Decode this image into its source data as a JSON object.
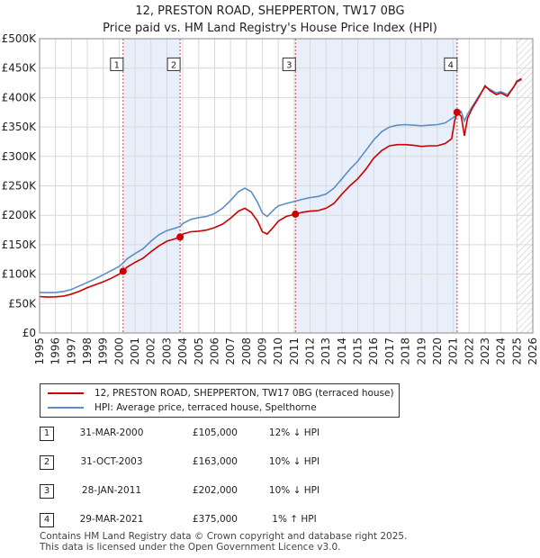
{
  "chart_data": {
    "type": "line",
    "title": "12, PRESTON ROAD, SHEPPERTON, TW17 0BG",
    "subtitle": "Price paid vs. HM Land Registry's House Price Index (HPI)",
    "xlim": [
      1995,
      2026
    ],
    "ylim": [
      0,
      500000
    ],
    "x_ticks": [
      "1995",
      "1996",
      "1997",
      "1998",
      "1999",
      "2000",
      "2001",
      "2002",
      "2003",
      "2004",
      "2005",
      "2006",
      "2007",
      "2008",
      "2009",
      "2010",
      "2011",
      "2012",
      "2013",
      "2014",
      "2015",
      "2016",
      "2017",
      "2018",
      "2019",
      "2020",
      "2021",
      "2022",
      "2023",
      "2024",
      "2025",
      "2026"
    ],
    "y_ticks": [
      {
        "value": 0,
        "label": "£0"
      },
      {
        "value": 50000,
        "label": "£50K"
      },
      {
        "value": 100000,
        "label": "£100K"
      },
      {
        "value": 150000,
        "label": "£150K"
      },
      {
        "value": 200000,
        "label": "£200K"
      },
      {
        "value": 250000,
        "label": "£250K"
      },
      {
        "value": 300000,
        "label": "£300K"
      },
      {
        "value": 350000,
        "label": "£350K"
      },
      {
        "value": 400000,
        "label": "£400K"
      },
      {
        "value": 450000,
        "label": "£450K"
      },
      {
        "value": 500000,
        "label": "£500K"
      }
    ],
    "grid": true,
    "shaded_periods": [
      [
        2000.25,
        2003.83
      ],
      [
        2011.08,
        2021.24
      ]
    ],
    "future_hatch_from": 2025.0,
    "series": [
      {
        "name": "12, PRESTON ROAD, SHEPPERTON, TW17 0BG (terraced house)",
        "color": "#cc0000",
        "points": [
          [
            1995.0,
            62000
          ],
          [
            1995.5,
            61000
          ],
          [
            1996.0,
            61500
          ],
          [
            1996.5,
            62500
          ],
          [
            1997.0,
            66000
          ],
          [
            1997.5,
            71000
          ],
          [
            1998.0,
            77000
          ],
          [
            1998.5,
            82000
          ],
          [
            1999.0,
            87000
          ],
          [
            1999.5,
            93000
          ],
          [
            2000.0,
            100000
          ],
          [
            2000.25,
            105000
          ],
          [
            2000.5,
            112000
          ],
          [
            2001.0,
            120000
          ],
          [
            2001.5,
            127000
          ],
          [
            2002.0,
            138000
          ],
          [
            2002.5,
            148000
          ],
          [
            2003.0,
            156000
          ],
          [
            2003.5,
            160000
          ],
          [
            2003.83,
            163000
          ],
          [
            2004.0,
            168000
          ],
          [
            2004.5,
            172000
          ],
          [
            2005.0,
            173000
          ],
          [
            2005.5,
            175000
          ],
          [
            2006.0,
            179000
          ],
          [
            2006.5,
            185000
          ],
          [
            2007.0,
            195000
          ],
          [
            2007.5,
            207000
          ],
          [
            2007.9,
            212000
          ],
          [
            2008.3,
            205000
          ],
          [
            2008.7,
            190000
          ],
          [
            2009.0,
            172000
          ],
          [
            2009.3,
            168000
          ],
          [
            2009.7,
            180000
          ],
          [
            2010.0,
            190000
          ],
          [
            2010.5,
            198000
          ],
          [
            2011.08,
            202000
          ],
          [
            2011.5,
            205000
          ],
          [
            2012.0,
            207000
          ],
          [
            2012.5,
            208000
          ],
          [
            2013.0,
            212000
          ],
          [
            2013.5,
            220000
          ],
          [
            2014.0,
            236000
          ],
          [
            2014.5,
            250000
          ],
          [
            2015.0,
            262000
          ],
          [
            2015.5,
            278000
          ],
          [
            2016.0,
            297000
          ],
          [
            2016.5,
            310000
          ],
          [
            2017.0,
            318000
          ],
          [
            2017.5,
            320000
          ],
          [
            2018.0,
            320000
          ],
          [
            2018.5,
            319000
          ],
          [
            2019.0,
            317000
          ],
          [
            2019.5,
            318000
          ],
          [
            2020.0,
            318000
          ],
          [
            2020.5,
            322000
          ],
          [
            2020.9,
            330000
          ],
          [
            2021.1,
            362000
          ],
          [
            2021.24,
            375000
          ],
          [
            2021.5,
            368000
          ],
          [
            2021.7,
            335000
          ],
          [
            2021.9,
            365000
          ],
          [
            2022.2,
            382000
          ],
          [
            2022.6,
            400000
          ],
          [
            2023.0,
            420000
          ],
          [
            2023.3,
            412000
          ],
          [
            2023.7,
            405000
          ],
          [
            2024.0,
            408000
          ],
          [
            2024.4,
            402000
          ],
          [
            2024.8,
            418000
          ],
          [
            2025.0,
            428000
          ],
          [
            2025.3,
            432000
          ]
        ]
      },
      {
        "name": "HPI: Average price, terraced house, Spelthorne",
        "color": "#5b8ec6",
        "points": [
          [
            1995.0,
            69000
          ],
          [
            1995.5,
            68500
          ],
          [
            1996.0,
            69000
          ],
          [
            1996.5,
            70500
          ],
          [
            1997.0,
            74000
          ],
          [
            1997.5,
            80000
          ],
          [
            1998.0,
            86000
          ],
          [
            1998.5,
            92000
          ],
          [
            1999.0,
            99000
          ],
          [
            1999.5,
            106000
          ],
          [
            2000.0,
            113000
          ],
          [
            2000.25,
            119000
          ],
          [
            2000.5,
            126000
          ],
          [
            2001.0,
            135000
          ],
          [
            2001.5,
            143000
          ],
          [
            2002.0,
            156000
          ],
          [
            2002.5,
            167000
          ],
          [
            2003.0,
            174000
          ],
          [
            2003.5,
            178000
          ],
          [
            2003.83,
            181000
          ],
          [
            2004.0,
            186000
          ],
          [
            2004.5,
            193000
          ],
          [
            2005.0,
            196000
          ],
          [
            2005.5,
            198000
          ],
          [
            2006.0,
            203000
          ],
          [
            2006.5,
            212000
          ],
          [
            2007.0,
            225000
          ],
          [
            2007.5,
            240000
          ],
          [
            2007.9,
            246000
          ],
          [
            2008.3,
            240000
          ],
          [
            2008.7,
            222000
          ],
          [
            2009.0,
            204000
          ],
          [
            2009.3,
            198000
          ],
          [
            2009.7,
            209000
          ],
          [
            2010.0,
            216000
          ],
          [
            2010.5,
            220000
          ],
          [
            2011.08,
            224000
          ],
          [
            2011.5,
            227000
          ],
          [
            2012.0,
            230000
          ],
          [
            2012.5,
            232000
          ],
          [
            2013.0,
            236000
          ],
          [
            2013.5,
            246000
          ],
          [
            2014.0,
            262000
          ],
          [
            2014.5,
            278000
          ],
          [
            2015.0,
            292000
          ],
          [
            2015.5,
            310000
          ],
          [
            2016.0,
            328000
          ],
          [
            2016.5,
            342000
          ],
          [
            2017.0,
            350000
          ],
          [
            2017.5,
            353000
          ],
          [
            2018.0,
            354000
          ],
          [
            2018.5,
            353000
          ],
          [
            2019.0,
            352000
          ],
          [
            2019.5,
            353000
          ],
          [
            2020.0,
            354000
          ],
          [
            2020.5,
            357000
          ],
          [
            2020.9,
            364000
          ],
          [
            2021.1,
            368000
          ],
          [
            2021.24,
            371000
          ],
          [
            2021.5,
            376000
          ],
          [
            2021.7,
            360000
          ],
          [
            2021.9,
            372000
          ],
          [
            2022.2,
            385000
          ],
          [
            2022.6,
            402000
          ],
          [
            2023.0,
            418000
          ],
          [
            2023.3,
            414000
          ],
          [
            2023.7,
            408000
          ],
          [
            2024.0,
            410000
          ],
          [
            2024.4,
            405000
          ],
          [
            2024.8,
            418000
          ],
          [
            2025.0,
            426000
          ],
          [
            2025.3,
            430000
          ]
        ]
      }
    ],
    "sale_markers": [
      {
        "n": "1",
        "x": 2000.25,
        "y": 105000
      },
      {
        "n": "2",
        "x": 2003.83,
        "y": 163000
      },
      {
        "n": "3",
        "x": 2011.08,
        "y": 202000
      },
      {
        "n": "4",
        "x": 2021.24,
        "y": 375000
      }
    ],
    "marker_box_value": 455000
  },
  "legend": {
    "property_label": "12, PRESTON ROAD, SHEPPERTON, TW17 0BG (terraced house)",
    "hpi_label": "HPI: Average price, terraced house, Spelthorne"
  },
  "sales": [
    {
      "n": "1",
      "date": "31-MAR-2000",
      "price": "£105,000",
      "hpi": "12% ↓ HPI"
    },
    {
      "n": "2",
      "date": "31-OCT-2003",
      "price": "£163,000",
      "hpi": "10% ↓ HPI"
    },
    {
      "n": "3",
      "date": "28-JAN-2011",
      "price": "£202,000",
      "hpi": "10% ↓ HPI"
    },
    {
      "n": "4",
      "date": "29-MAR-2021",
      "price": "£375,000",
      "hpi": "1% ↑ HPI"
    }
  ],
  "footer": {
    "line1": "Contains HM Land Registry data © Crown copyright and database right 2025.",
    "line2": "This data is licensed under the Open Government Licence v3.0."
  }
}
